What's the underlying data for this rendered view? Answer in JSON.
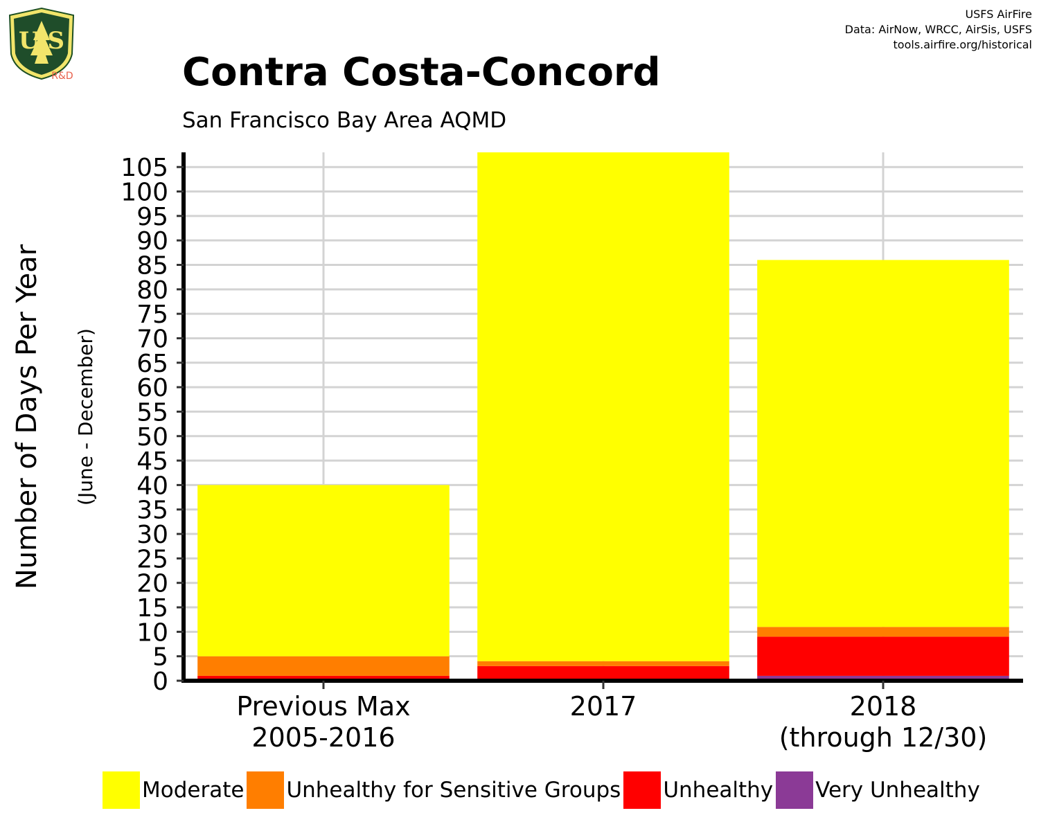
{
  "header": {
    "credit_line1": "USFS AirFire",
    "credit_line2": "Data: AirNow, WRCC, AirSis, USFS",
    "credit_line3": "tools.airfire.org/historical",
    "logo_text_top": "FOREST SERVICE",
    "logo_text_mid": "U S",
    "logo_text_bottom": "DEPARTMENT OF AGRICULTURE",
    "logo_badge": "R&D"
  },
  "chart_data": {
    "type": "bar",
    "stacked": true,
    "title": "Contra Costa-Concord",
    "subtitle": "San Francisco Bay Area AQMD",
    "ylabel": "Number of Days Per Year",
    "ylabel_sub": "(June - December)",
    "xlabel": "",
    "ylim": [
      0,
      108
    ],
    "yticks": [
      0,
      5,
      10,
      15,
      20,
      25,
      30,
      35,
      40,
      45,
      50,
      55,
      60,
      65,
      70,
      75,
      80,
      85,
      90,
      95,
      100,
      105
    ],
    "grid": true,
    "legend_position": "bottom",
    "categories": [
      [
        "Previous Max",
        "2005-2016"
      ],
      [
        "2017"
      ],
      [
        "2018",
        "(through 12/30)"
      ]
    ],
    "series": [
      {
        "name": "Very Unhealthy",
        "color": "#8B3A96",
        "values": [
          0,
          0,
          1
        ]
      },
      {
        "name": "Unhealthy",
        "color": "#FF0000",
        "values": [
          1,
          3,
          8
        ]
      },
      {
        "name": "Unhealthy for Sensitive Groups",
        "color": "#FF7E00",
        "values": [
          4,
          1,
          2
        ]
      },
      {
        "name": "Moderate",
        "color": "#FFFF00",
        "values": [
          35,
          104,
          75
        ]
      }
    ],
    "legend_order": [
      "Moderate",
      "Unhealthy for Sensitive Groups",
      "Unhealthy",
      "Very Unhealthy"
    ]
  }
}
